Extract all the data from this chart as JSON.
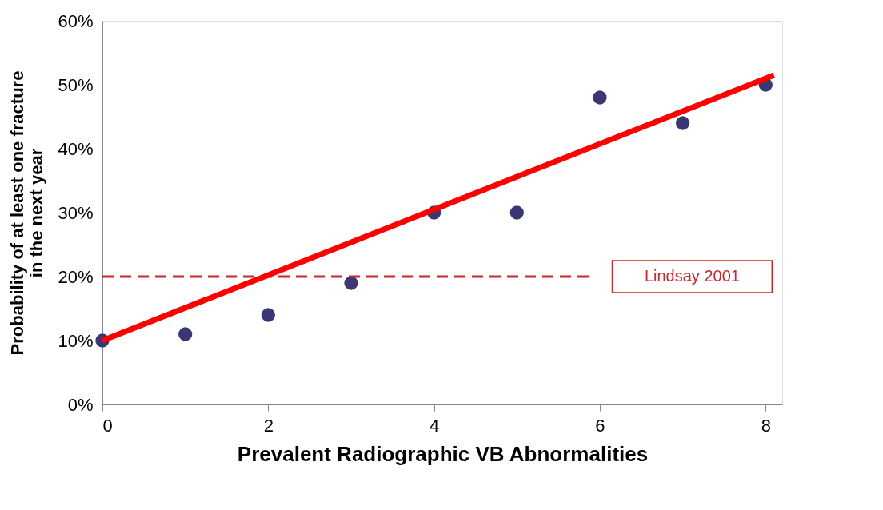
{
  "chart_data": {
    "type": "scatter",
    "xlabel": "Prevalent Radiographic VB Abnormalities",
    "ylabel": "Probability of at least one fracture\nin the next year",
    "x": [
      0,
      1,
      2,
      3,
      4,
      5,
      6,
      7,
      8
    ],
    "series": [
      {
        "color": "#3b3775",
        "values": [
          10,
          11,
          14,
          19,
          30,
          30,
          48,
          44,
          50
        ]
      },
      {
        "type": "line",
        "marker": "none",
        "color": "#ff0000",
        "x": [
          0,
          8.1
        ],
        "values": [
          10,
          51.5
        ]
      }
    ],
    "xlim": [
      0,
      8.2
    ],
    "xticks": [
      0,
      2,
      4,
      6,
      8
    ],
    "ylim": [
      0,
      60
    ],
    "yticks": [
      {
        "value": 0,
        "label": "0%"
      },
      {
        "value": 10,
        "label": "10%"
      },
      {
        "value": 20,
        "label": "20%"
      },
      {
        "value": 30,
        "label": "30%"
      },
      {
        "value": 40,
        "label": "40%"
      },
      {
        "value": 50,
        "label": "50%"
      },
      {
        "value": 60,
        "label": "60%"
      }
    ],
    "ref_lines": [
      {
        "axis": "y",
        "value": 20,
        "label": "Lindsay 2001",
        "color": "#c8282d",
        "line_style": "dashed"
      }
    ],
    "grid": false,
    "marker": "circle"
  }
}
